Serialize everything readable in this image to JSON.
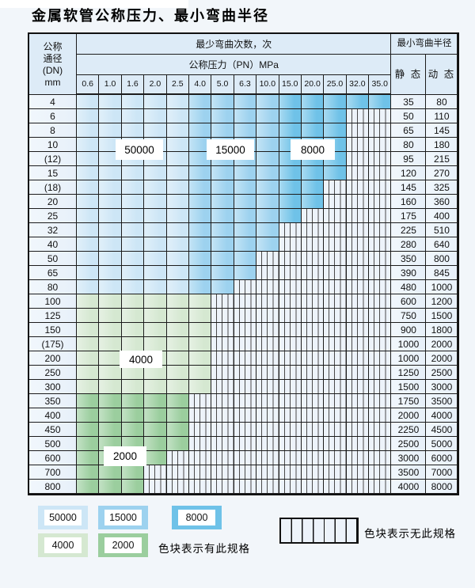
{
  "title": "金属软管公称压力、最小弯曲半径",
  "table": {
    "dn_header_lines": [
      "公称",
      "通径",
      "(DN)",
      "mm"
    ],
    "bend_cycles_header": "最少弯曲次数，次",
    "pressure_header": "公称压力（PN）MPa",
    "pressure_columns": [
      "0.6",
      "1.0",
      "1.6",
      "2.0",
      "2.5",
      "4.0",
      "5.0",
      "6.3",
      "10.0",
      "15.0",
      "20.0",
      "25.0",
      "32.0",
      "35.0"
    ],
    "radius_header": "最小弯曲半径",
    "static_header": "静 态",
    "dynamic_header": "动 态",
    "blue_col_shades": [
      "50000",
      "50000",
      "50000",
      "50000",
      "50000",
      "15000",
      "15000",
      "15000",
      "15000",
      "8000",
      "8000",
      "8000",
      "8000",
      "8000"
    ],
    "rows": [
      {
        "dn": "4",
        "palette": "blue",
        "colored_cols": 14,
        "static": "35",
        "dynamic": "80"
      },
      {
        "dn": "6",
        "palette": "blue",
        "colored_cols": 12,
        "static": "50",
        "dynamic": "110"
      },
      {
        "dn": "8",
        "palette": "blue",
        "colored_cols": 12,
        "static": "65",
        "dynamic": "145"
      },
      {
        "dn": "10",
        "palette": "blue",
        "colored_cols": 12,
        "static": "80",
        "dynamic": "180"
      },
      {
        "dn": "(12)",
        "palette": "blue",
        "colored_cols": 12,
        "static": "95",
        "dynamic": "215"
      },
      {
        "dn": "15",
        "palette": "blue",
        "colored_cols": 12,
        "static": "120",
        "dynamic": "270"
      },
      {
        "dn": "(18)",
        "palette": "blue",
        "colored_cols": 11,
        "static": "145",
        "dynamic": "325"
      },
      {
        "dn": "20",
        "palette": "blue",
        "colored_cols": 11,
        "static": "160",
        "dynamic": "360"
      },
      {
        "dn": "25",
        "palette": "blue",
        "colored_cols": 10,
        "static": "175",
        "dynamic": "400"
      },
      {
        "dn": "32",
        "palette": "blue",
        "colored_cols": 9,
        "static": "225",
        "dynamic": "510"
      },
      {
        "dn": "40",
        "palette": "blue",
        "colored_cols": 9,
        "static": "280",
        "dynamic": "640"
      },
      {
        "dn": "50",
        "palette": "blue",
        "colored_cols": 8,
        "static": "350",
        "dynamic": "800"
      },
      {
        "dn": "65",
        "palette": "blue",
        "colored_cols": 8,
        "static": "390",
        "dynamic": "845"
      },
      {
        "dn": "80",
        "palette": "blue",
        "colored_cols": 7,
        "static": "480",
        "dynamic": "1000"
      },
      {
        "dn": "100",
        "palette": "4000",
        "colored_cols": 6,
        "static": "600",
        "dynamic": "1200"
      },
      {
        "dn": "125",
        "palette": "4000",
        "colored_cols": 6,
        "static": "750",
        "dynamic": "1500"
      },
      {
        "dn": "150",
        "palette": "4000",
        "colored_cols": 6,
        "static": "900",
        "dynamic": "1800"
      },
      {
        "dn": "(175)",
        "palette": "4000",
        "colored_cols": 6,
        "static": "1000",
        "dynamic": "2000"
      },
      {
        "dn": "200",
        "palette": "4000",
        "colored_cols": 6,
        "static": "1000",
        "dynamic": "2000"
      },
      {
        "dn": "250",
        "palette": "4000",
        "colored_cols": 6,
        "static": "1250",
        "dynamic": "2500"
      },
      {
        "dn": "300",
        "palette": "4000",
        "colored_cols": 6,
        "static": "1500",
        "dynamic": "3000"
      },
      {
        "dn": "350",
        "palette": "2000",
        "colored_cols": 5,
        "static": "1750",
        "dynamic": "3500"
      },
      {
        "dn": "400",
        "palette": "2000",
        "colored_cols": 5,
        "static": "2000",
        "dynamic": "4000"
      },
      {
        "dn": "450",
        "palette": "2000",
        "colored_cols": 5,
        "static": "2250",
        "dynamic": "4500"
      },
      {
        "dn": "500",
        "palette": "2000",
        "colored_cols": 5,
        "static": "2500",
        "dynamic": "5000"
      },
      {
        "dn": "600",
        "palette": "2000",
        "colored_cols": 4,
        "static": "3000",
        "dynamic": "6000"
      },
      {
        "dn": "700",
        "palette": "2000",
        "colored_cols": 3,
        "static": "3500",
        "dynamic": "7000"
      },
      {
        "dn": "800",
        "palette": "2000",
        "colored_cols": 3,
        "static": "4000",
        "dynamic": "8000"
      }
    ],
    "region_labels": {
      "l50000": "50000",
      "l15000": "15000",
      "l8000": "8000",
      "l4000": "4000",
      "l2000": "2000"
    }
  },
  "legend": {
    "swatches": [
      {
        "label": "50000",
        "shade": "50000"
      },
      {
        "label": "15000",
        "shade": "15000"
      },
      {
        "label": "8000",
        "shade": "8000"
      },
      {
        "label": "4000",
        "shade": "4000"
      },
      {
        "label": "2000",
        "shade": "2000"
      }
    ],
    "available_text": "色块表示有此规格",
    "unavailable_text": "色块表示无此规格"
  },
  "colors": {
    "c50000": "#cde6f6",
    "c15000": "#9dd2ef",
    "c8000": "#6fc2e8",
    "c4000": "#d5e8d1",
    "c2000": "#9bce9e",
    "hatch_bg": "#edf3fa",
    "hatch_line": "#4a4a4a",
    "side_bg": "#e7f0f9",
    "header_bg": "#ddebf7",
    "grid_line": "#1c1c1c",
    "page_bg": "#f2f6fa"
  }
}
